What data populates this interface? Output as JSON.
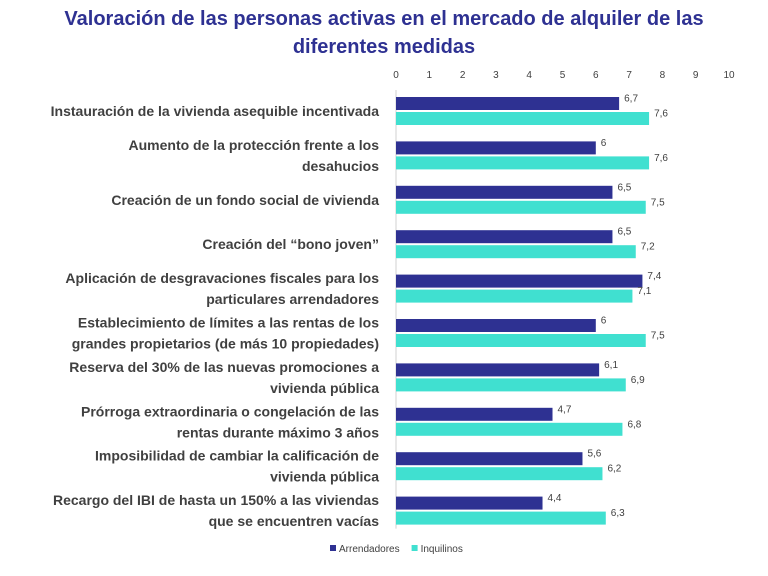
{
  "chart_data": {
    "type": "bar",
    "orientation": "horizontal",
    "title_lines": [
      "Valoración de las personas activas en el mercado de alquiler de las",
      "diferentes medidas"
    ],
    "categories": [
      [
        "Instauración de la vivienda asequible incentivada"
      ],
      [
        "Aumento de la protección frente a los",
        "desahucios"
      ],
      [
        "Creación de un fondo social de vivienda"
      ],
      [
        "Creación del “bono joven”"
      ],
      [
        "Aplicación de desgravaciones fiscales para los",
        "particulares arrendadores"
      ],
      [
        "Establecimiento de límites a las rentas de los",
        "grandes propietarios (de más 10 propiedades)"
      ],
      [
        "Reserva del 30% de las nuevas promociones a",
        "vivienda pública"
      ],
      [
        "Prórroga extraordinaria o congelación de las",
        "rentas durante máximo 3 años"
      ],
      [
        "Imposibilidad de cambiar la calificación de",
        "vivienda pública"
      ],
      [
        "Recargo del IBI de hasta un 150% a las viviendas",
        "que se encuentren vacías"
      ]
    ],
    "series": [
      {
        "name": "Arrendadores",
        "color": "#2e3192",
        "values": [
          6.7,
          6,
          6.5,
          6.5,
          7.4,
          6,
          6.1,
          4.7,
          5.6,
          4.4
        ],
        "labels": [
          "6,7",
          "6",
          "6,5",
          "6,5",
          "7,4",
          "6",
          "6,1",
          "4,7",
          "5,6",
          "4,4"
        ]
      },
      {
        "name": "Inquilinos",
        "color": "#40e0d0",
        "values": [
          7.6,
          7.6,
          7.5,
          7.2,
          7.1,
          7.5,
          6.9,
          6.8,
          6.2,
          6.3
        ],
        "labels": [
          "7,6",
          "7,6",
          "7,5",
          "7,2",
          "7,1",
          "7,5",
          "6,9",
          "6,8",
          "6,2",
          "6,3"
        ]
      }
    ],
    "xlim": [
      0,
      10
    ],
    "xticks": [
      "0",
      "1",
      "2",
      "3",
      "4",
      "5",
      "6",
      "7",
      "8",
      "9",
      "10"
    ],
    "xaxis_position": "top",
    "legend_position": "bottom",
    "grid": false
  }
}
